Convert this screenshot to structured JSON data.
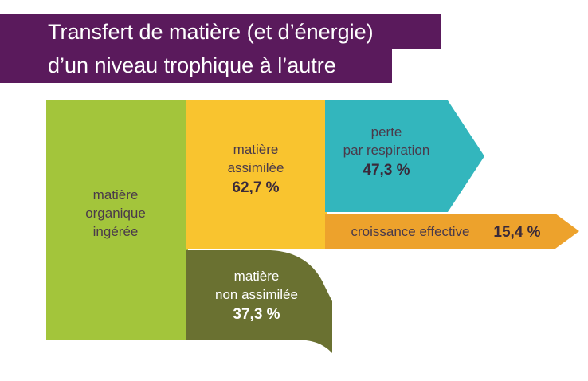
{
  "title": {
    "line1": "Transfert de matière (et d’énergie)",
    "line2": "d’un niveau trophique à l’autre"
  },
  "nodes": {
    "ingested": {
      "line1": "matière",
      "line2": "organique",
      "line3": "ingérée",
      "color": "#a3c53b"
    },
    "assimilated": {
      "line1": "matière",
      "line2": "assimilée",
      "value": "62,7 %",
      "color": "#f9c42f"
    },
    "non_assimilated": {
      "line1": "matière",
      "line2": "non assimilée",
      "value": "37,3 %",
      "color": "#6a7131"
    },
    "respiration": {
      "line1": "perte",
      "line2": "par respiration",
      "value": "47,3 %",
      "color": "#33b6bd"
    },
    "growth": {
      "label": "croissance effective",
      "value": "15,4 %",
      "color": "#eda22c"
    }
  },
  "colors": {
    "title_background": "#5a1a5c",
    "title_text": "#ffffff",
    "label_text": "#4a3a4a"
  }
}
